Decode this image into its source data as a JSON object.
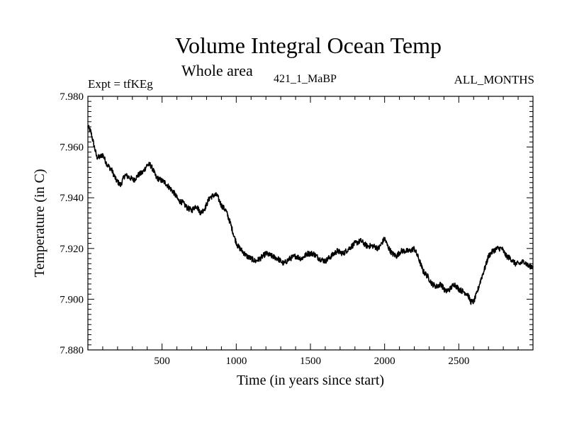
{
  "chart_data": {
    "type": "line",
    "title": "Volume Integral Ocean Temp",
    "subtitle": "Whole area",
    "left_annotation": "Expt = tfKEg",
    "center_annotation": "421_1_MaBP",
    "right_annotation": "ALL_MONTHS",
    "xlabel": "Time (in years since start)",
    "ylabel": "Temperature (in C)",
    "xlim": [
      0,
      3000
    ],
    "ylim": [
      7.88,
      7.98
    ],
    "x_ticks": [
      500,
      1000,
      1500,
      2000,
      2500
    ],
    "x_tick_labels": [
      "500",
      "1000",
      "1500",
      "2000",
      "2500"
    ],
    "y_ticks": [
      7.88,
      7.9,
      7.92,
      7.94,
      7.96,
      7.98
    ],
    "y_tick_labels": [
      "7.880",
      "7.900",
      "7.920",
      "7.940",
      "7.960",
      "7.980"
    ],
    "grid": false,
    "series": [
      {
        "color": "#000000",
        "x": [
          0,
          20,
          40,
          60,
          80,
          100,
          130,
          160,
          190,
          220,
          250,
          280,
          310,
          340,
          370,
          400,
          420,
          440,
          460,
          490,
          520,
          550,
          580,
          610,
          640,
          670,
          700,
          730,
          760,
          790,
          820,
          850,
          870,
          900,
          930,
          960,
          990,
          1010,
          1040,
          1070,
          1100,
          1130,
          1160,
          1200,
          1240,
          1280,
          1320,
          1360,
          1400,
          1440,
          1480,
          1520,
          1560,
          1600,
          1640,
          1680,
          1720,
          1760,
          1800,
          1840,
          1880,
          1920,
          1960,
          2000,
          2020,
          2050,
          2080,
          2110,
          2140,
          2170,
          2200,
          2230,
          2260,
          2290,
          2320,
          2350,
          2380,
          2410,
          2440,
          2470,
          2500,
          2530,
          2560,
          2580,
          2600,
          2620,
          2650,
          2680,
          2700,
          2730,
          2760,
          2790,
          2820,
          2850,
          2880,
          2910,
          2940,
          2970,
          3000
        ],
        "y": [
          7.968,
          7.966,
          7.961,
          7.956,
          7.956,
          7.957,
          7.953,
          7.951,
          7.947,
          7.945,
          7.949,
          7.948,
          7.947,
          7.949,
          7.95,
          7.953,
          7.953,
          7.951,
          7.948,
          7.947,
          7.946,
          7.944,
          7.942,
          7.939,
          7.938,
          7.936,
          7.935,
          7.937,
          7.934,
          7.936,
          7.94,
          7.941,
          7.941,
          7.937,
          7.935,
          7.93,
          7.924,
          7.921,
          7.919,
          7.917,
          7.916,
          7.915,
          7.916,
          7.918,
          7.917,
          7.916,
          7.914,
          7.916,
          7.917,
          7.916,
          7.918,
          7.918,
          7.916,
          7.915,
          7.917,
          7.919,
          7.918,
          7.92,
          7.922,
          7.923,
          7.921,
          7.921,
          7.92,
          7.924,
          7.921,
          7.918,
          7.917,
          7.919,
          7.919,
          7.919,
          7.92,
          7.916,
          7.911,
          7.909,
          7.906,
          7.905,
          7.906,
          7.903,
          7.904,
          7.906,
          7.904,
          7.903,
          7.902,
          7.899,
          7.899,
          7.902,
          7.908,
          7.913,
          7.917,
          7.919,
          7.92,
          7.92,
          7.917,
          7.916,
          7.914,
          7.914,
          7.915,
          7.913,
          7.913
        ]
      }
    ]
  }
}
